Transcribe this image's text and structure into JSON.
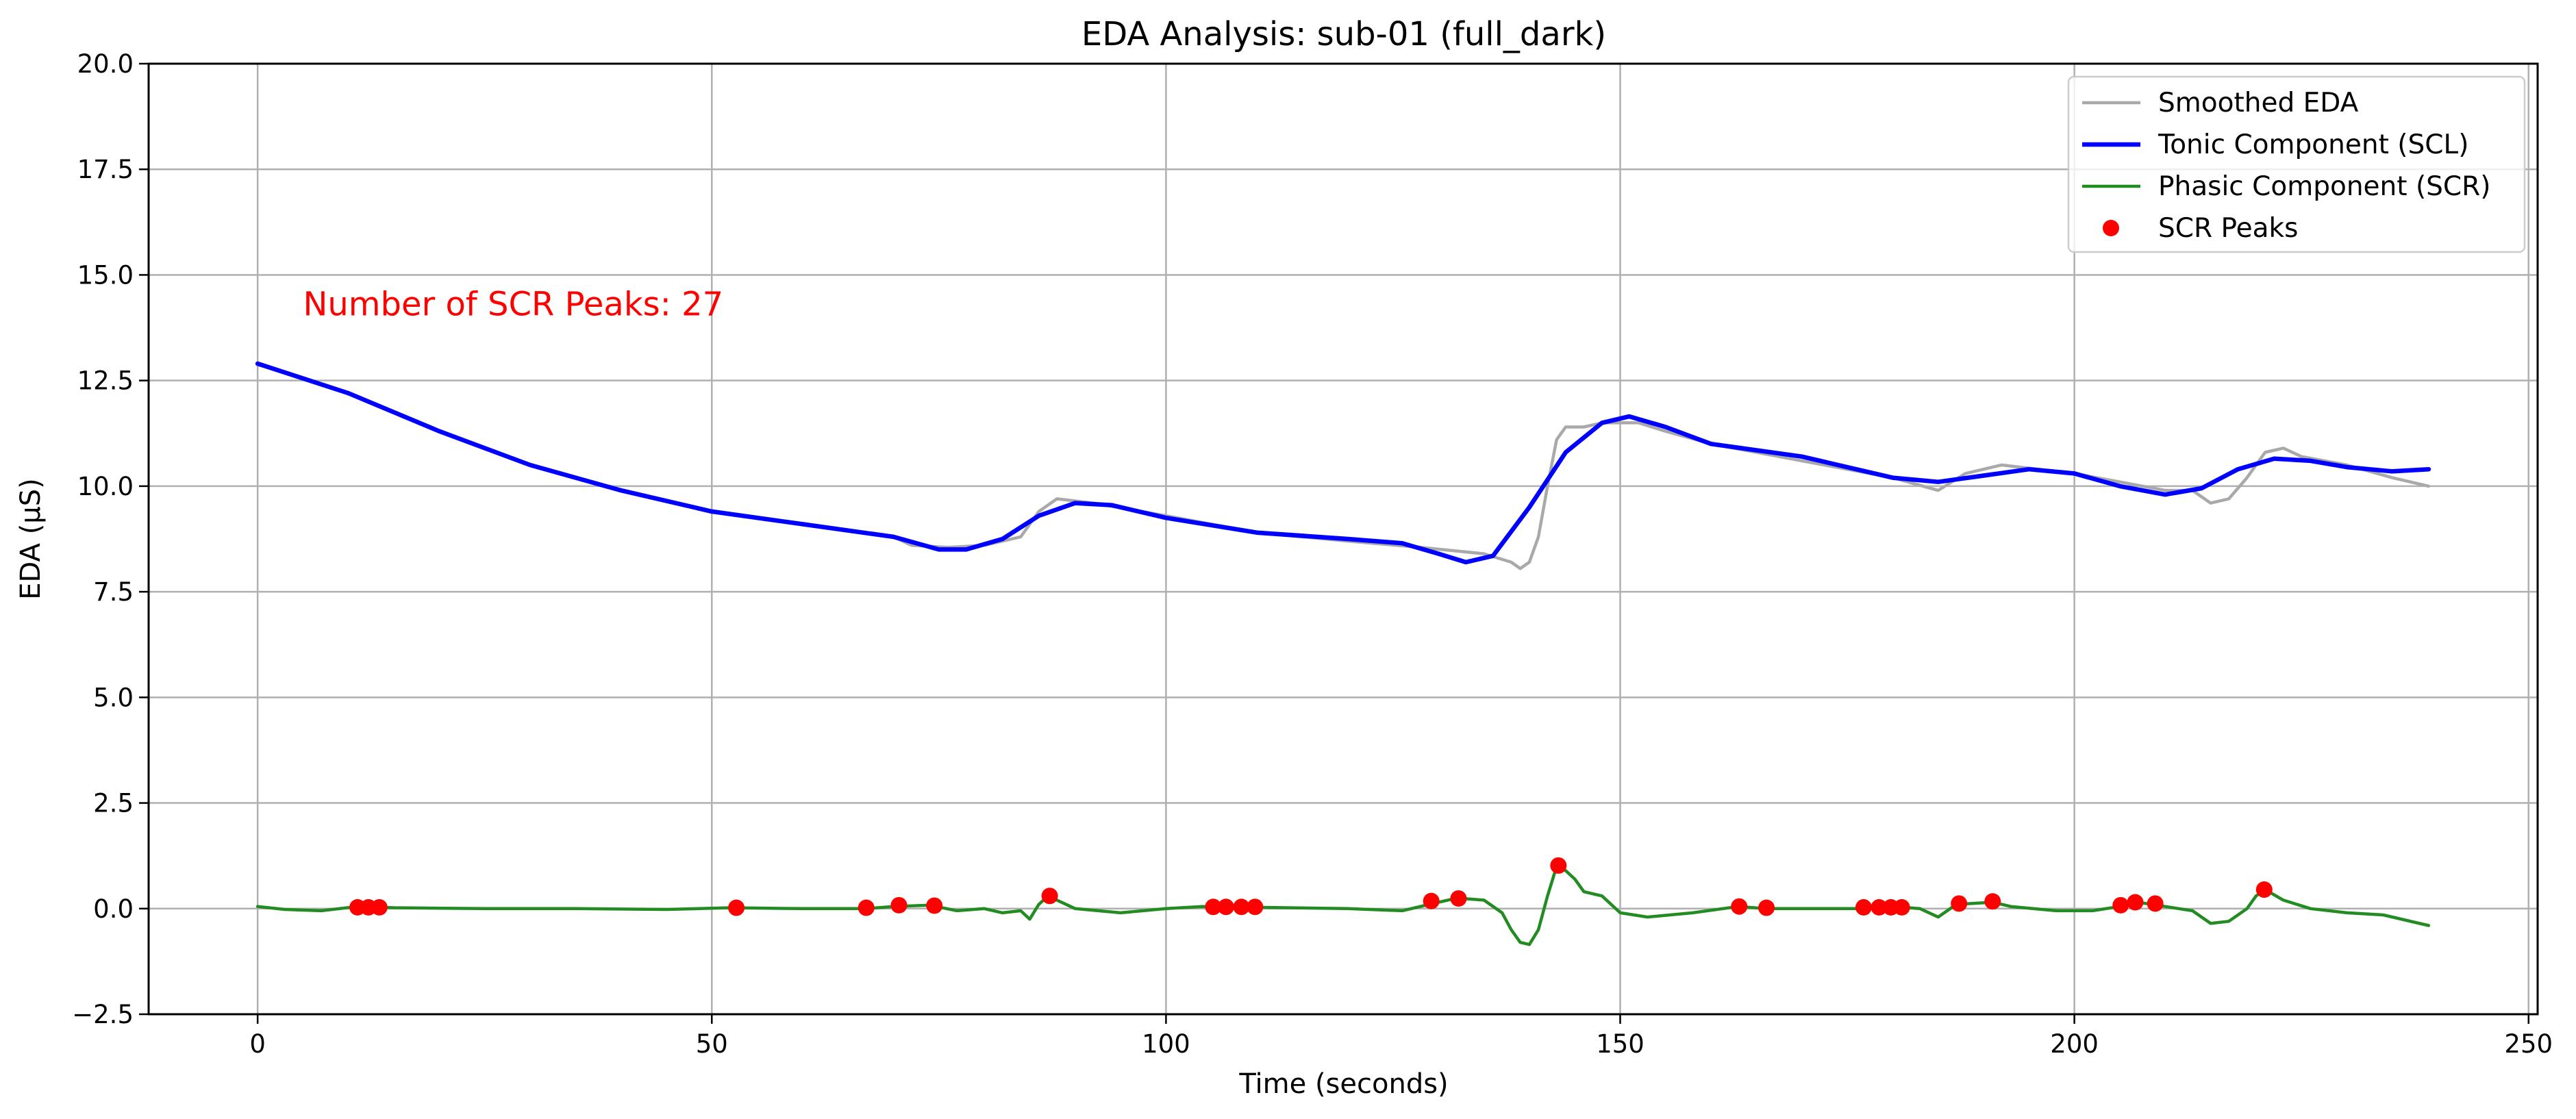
{
  "chart_data": {
    "type": "line",
    "title": "EDA Analysis: sub-01 (full_dark)",
    "xlabel": "Time (seconds)",
    "ylabel": "EDA (µS)",
    "xlim": [
      -12,
      251
    ],
    "ylim": [
      -2.5,
      20.0
    ],
    "x_ticks": [
      0,
      50,
      100,
      150,
      200,
      250
    ],
    "y_ticks": [
      -2.5,
      0.0,
      2.5,
      5.0,
      7.5,
      10.0,
      12.5,
      15.0,
      17.5,
      20.0
    ],
    "x_tick_labels": [
      "0",
      "50",
      "100",
      "150",
      "200",
      "250"
    ],
    "y_tick_labels": [
      "−2.5",
      "0.0",
      "2.5",
      "5.0",
      "7.5",
      "10.0",
      "12.5",
      "15.0",
      "17.5",
      "20.0"
    ],
    "grid": true,
    "legend_position": "top-right",
    "annotation": {
      "text": "Number of SCR Peaks: 27",
      "x": 5,
      "y": 14.3,
      "color": "#ff0000"
    },
    "series": [
      {
        "name": "Smoothed EDA",
        "kind": "line",
        "color": "#a9a9a9",
        "points": [
          [
            0,
            12.9
          ],
          [
            10,
            12.2
          ],
          [
            20,
            11.3
          ],
          [
            30,
            10.5
          ],
          [
            40,
            9.9
          ],
          [
            50,
            9.4
          ],
          [
            60,
            9.1
          ],
          [
            70,
            8.8
          ],
          [
            72,
            8.6
          ],
          [
            76,
            8.55
          ],
          [
            80,
            8.6
          ],
          [
            84,
            8.8
          ],
          [
            86,
            9.4
          ],
          [
            88,
            9.7
          ],
          [
            92,
            9.6
          ],
          [
            100,
            9.3
          ],
          [
            110,
            8.9
          ],
          [
            120,
            8.7
          ],
          [
            128,
            8.55
          ],
          [
            135,
            8.4
          ],
          [
            138,
            8.2
          ],
          [
            139,
            8.05
          ],
          [
            140,
            8.2
          ],
          [
            141,
            8.8
          ],
          [
            142,
            10.0
          ],
          [
            143,
            11.1
          ],
          [
            144,
            11.4
          ],
          [
            146,
            11.4
          ],
          [
            148,
            11.5
          ],
          [
            150,
            11.5
          ],
          [
            152,
            11.5
          ],
          [
            155,
            11.3
          ],
          [
            160,
            11.0
          ],
          [
            170,
            10.6
          ],
          [
            180,
            10.2
          ],
          [
            185,
            9.9
          ],
          [
            188,
            10.3
          ],
          [
            190,
            10.4
          ],
          [
            192,
            10.5
          ],
          [
            200,
            10.3
          ],
          [
            205,
            10.1
          ],
          [
            210,
            9.9
          ],
          [
            213,
            9.9
          ],
          [
            215,
            9.6
          ],
          [
            217,
            9.7
          ],
          [
            219,
            10.2
          ],
          [
            221,
            10.8
          ],
          [
            223,
            10.9
          ],
          [
            225,
            10.7
          ],
          [
            230,
            10.5
          ],
          [
            235,
            10.2
          ],
          [
            239,
            10.0
          ]
        ]
      },
      {
        "name": "Tonic Component (SCL)",
        "kind": "line",
        "color": "#0000ff",
        "points": [
          [
            0,
            12.9
          ],
          [
            10,
            12.2
          ],
          [
            20,
            11.3
          ],
          [
            30,
            10.5
          ],
          [
            40,
            9.9
          ],
          [
            50,
            9.4
          ],
          [
            60,
            9.1
          ],
          [
            70,
            8.8
          ],
          [
            75,
            8.5
          ],
          [
            78,
            8.5
          ],
          [
            82,
            8.75
          ],
          [
            86,
            9.3
          ],
          [
            90,
            9.6
          ],
          [
            94,
            9.55
          ],
          [
            100,
            9.25
          ],
          [
            110,
            8.9
          ],
          [
            120,
            8.75
          ],
          [
            126,
            8.65
          ],
          [
            130,
            8.4
          ],
          [
            133,
            8.2
          ],
          [
            136,
            8.35
          ],
          [
            140,
            9.5
          ],
          [
            144,
            10.8
          ],
          [
            148,
            11.5
          ],
          [
            151,
            11.65
          ],
          [
            155,
            11.4
          ],
          [
            160,
            11.0
          ],
          [
            170,
            10.7
          ],
          [
            180,
            10.2
          ],
          [
            185,
            10.1
          ],
          [
            190,
            10.25
          ],
          [
            195,
            10.4
          ],
          [
            200,
            10.3
          ],
          [
            205,
            10.0
          ],
          [
            210,
            9.8
          ],
          [
            214,
            9.95
          ],
          [
            218,
            10.4
          ],
          [
            222,
            10.65
          ],
          [
            226,
            10.6
          ],
          [
            230,
            10.45
          ],
          [
            235,
            10.35
          ],
          [
            239,
            10.4
          ]
        ]
      },
      {
        "name": "Phasic Component (SCR)",
        "kind": "line",
        "color": "#228b22",
        "points": [
          [
            0,
            0.05
          ],
          [
            3,
            -0.02
          ],
          [
            7,
            -0.05
          ],
          [
            11,
            0.05
          ],
          [
            15,
            0.02
          ],
          [
            25,
            0.0
          ],
          [
            35,
            0.0
          ],
          [
            45,
            -0.02
          ],
          [
            52,
            0.02
          ],
          [
            60,
            0.0
          ],
          [
            67,
            0.0
          ],
          [
            70,
            0.05
          ],
          [
            74,
            0.08
          ],
          [
            77,
            -0.05
          ],
          [
            80,
            0.0
          ],
          [
            82,
            -0.1
          ],
          [
            84,
            -0.05
          ],
          [
            85,
            -0.25
          ],
          [
            86,
            0.1
          ],
          [
            87,
            0.3
          ],
          [
            90,
            0.0
          ],
          [
            95,
            -0.1
          ],
          [
            100,
            0.0
          ],
          [
            104,
            0.05
          ],
          [
            110,
            0.03
          ],
          [
            120,
            0.0
          ],
          [
            126,
            -0.05
          ],
          [
            129,
            0.1
          ],
          [
            132,
            0.25
          ],
          [
            135,
            0.2
          ],
          [
            137,
            -0.1
          ],
          [
            138,
            -0.5
          ],
          [
            139,
            -0.8
          ],
          [
            140,
            -0.85
          ],
          [
            141,
            -0.5
          ],
          [
            142,
            0.3
          ],
          [
            143,
            1.0
          ],
          [
            144,
            0.9
          ],
          [
            145,
            0.7
          ],
          [
            146,
            0.4
          ],
          [
            148,
            0.3
          ],
          [
            150,
            -0.1
          ],
          [
            153,
            -0.2
          ],
          [
            158,
            -0.1
          ],
          [
            163,
            0.05
          ],
          [
            166,
            0.0
          ],
          [
            170,
            0.0
          ],
          [
            177,
            0.0
          ],
          [
            180,
            0.05
          ],
          [
            183,
            0.0
          ],
          [
            185,
            -0.2
          ],
          [
            187,
            0.1
          ],
          [
            191,
            0.15
          ],
          [
            193,
            0.05
          ],
          [
            198,
            -0.05
          ],
          [
            202,
            -0.05
          ],
          [
            205,
            0.05
          ],
          [
            207,
            0.15
          ],
          [
            210,
            0.05
          ],
          [
            213,
            -0.05
          ],
          [
            215,
            -0.35
          ],
          [
            217,
            -0.3
          ],
          [
            219,
            0.0
          ],
          [
            220,
            0.3
          ],
          [
            221,
            0.45
          ],
          [
            223,
            0.2
          ],
          [
            226,
            0.0
          ],
          [
            230,
            -0.1
          ],
          [
            234,
            -0.15
          ],
          [
            239,
            -0.4
          ]
        ]
      },
      {
        "name": "SCR Peaks",
        "kind": "scatter",
        "color": "#ff0000",
        "points": [
          [
            11,
            0.03
          ],
          [
            12.2,
            0.03
          ],
          [
            13.4,
            0.03
          ],
          [
            52.7,
            0.02
          ],
          [
            67,
            0.02
          ],
          [
            70.6,
            0.08
          ],
          [
            74.5,
            0.07
          ],
          [
            87.2,
            0.3
          ],
          [
            105.2,
            0.04
          ],
          [
            106.6,
            0.04
          ],
          [
            108.3,
            0.04
          ],
          [
            109.8,
            0.04
          ],
          [
            129.2,
            0.18
          ],
          [
            132.2,
            0.24
          ],
          [
            143.2,
            1.02
          ],
          [
            163.1,
            0.05
          ],
          [
            166.1,
            0.02
          ],
          [
            176.8,
            0.03
          ],
          [
            178.5,
            0.03
          ],
          [
            179.8,
            0.03
          ],
          [
            181,
            0.03
          ],
          [
            187.3,
            0.12
          ],
          [
            191,
            0.17
          ],
          [
            205.1,
            0.08
          ],
          [
            206.7,
            0.15
          ],
          [
            208.9,
            0.12
          ],
          [
            220.9,
            0.45
          ]
        ]
      }
    ]
  }
}
